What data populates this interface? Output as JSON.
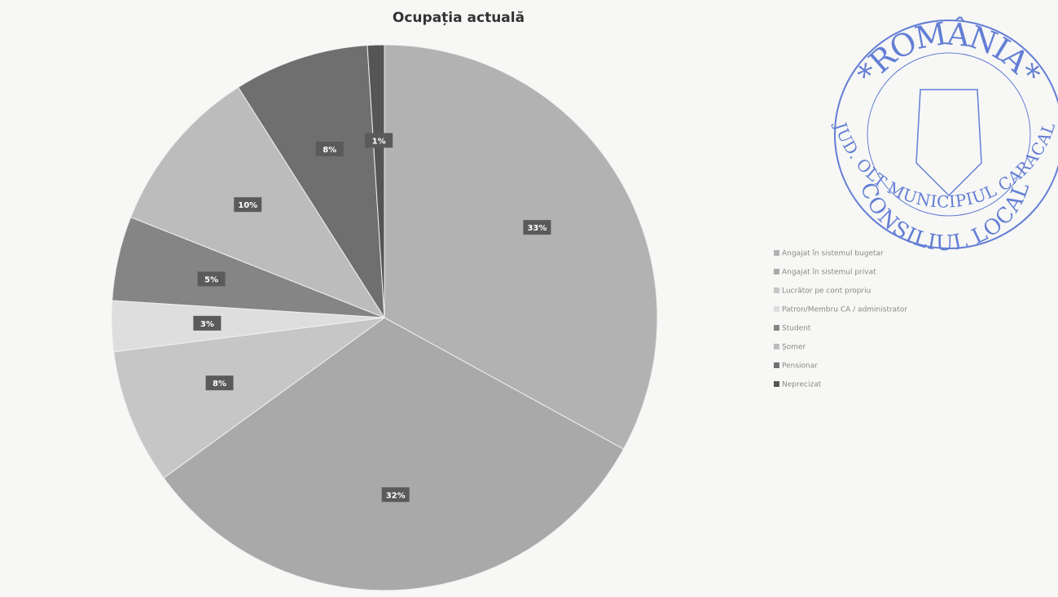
{
  "chart_data": {
    "type": "pie",
    "title": "Ocupația actuală",
    "categories": [
      "Angajat în sistemul bugetar",
      "Angajat în sistemul privat",
      "Lucrător pe cont propriu",
      "Patron/Membru CA / administrator",
      "Student",
      "Șomer",
      "Pensionar",
      "Neprecizat"
    ],
    "values": [
      33,
      32,
      8,
      3,
      5,
      10,
      8,
      1
    ],
    "value_labels": [
      "33%",
      "32%",
      "8%",
      "3%",
      "5%",
      "10%",
      "8%",
      "1%"
    ],
    "colors": [
      "#b2b2b2",
      "#a9a9a9",
      "#c6c6c6",
      "#dedede",
      "#858585",
      "#bcbcbc",
      "#6f6f6f",
      "#555555"
    ],
    "legend": "right"
  },
  "stamp": {
    "top": "*ROMÂNIA*",
    "bottom": "JUD. OLT MUNICIPIUL CARACAL",
    "inner": "CONSILIUL LOCAL"
  }
}
